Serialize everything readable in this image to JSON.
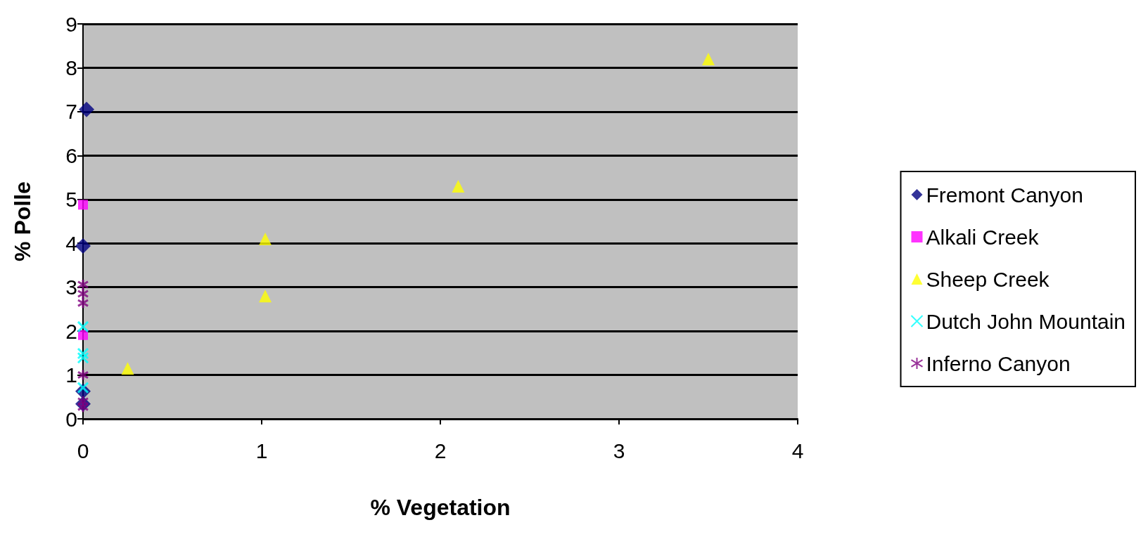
{
  "chart_data": {
    "type": "scatter",
    "xlabel": "% Vegetation",
    "ylabel": "% Polle",
    "xlim": [
      0,
      4
    ],
    "xticks": [
      0,
      1,
      2,
      3,
      4
    ],
    "ylim": [
      0,
      9
    ],
    "yticks": [
      0,
      1,
      2,
      3,
      4,
      5,
      6,
      7,
      8,
      9
    ],
    "grid": "y",
    "legend": "right",
    "series": [
      {
        "name": "Fremont Canyon",
        "color": "#000080",
        "marker": "diamond",
        "x": [
          0.02,
          0,
          0,
          0
        ],
        "values": [
          7.05,
          3.94,
          0.63,
          0.34
        ]
      },
      {
        "name": "Alkali Creek",
        "color": "#ff00ff",
        "marker": "square",
        "x": [
          0,
          0
        ],
        "values": [
          4.88,
          1.91
        ]
      },
      {
        "name": "Sheep Creek",
        "color": "#ffff00",
        "marker": "triangle",
        "x": [
          0.25,
          1.02,
          1.02,
          2.1,
          3.5
        ],
        "values": [
          1.15,
          4.1,
          2.8,
          5.3,
          8.2
        ]
      },
      {
        "name": "Dutch John Mountain",
        "color": "#00ffff",
        "marker": "cross",
        "x": [
          0,
          0,
          0,
          0
        ],
        "values": [
          2.1,
          1.49,
          1.39,
          0.71
        ]
      },
      {
        "name": "Inferno Canyon",
        "color": "#800080",
        "marker": "cross",
        "x": [
          0,
          0,
          0,
          0,
          0,
          0
        ],
        "values": [
          3.06,
          2.85,
          2.64,
          1.0,
          0.4,
          0.27
        ]
      }
    ]
  }
}
